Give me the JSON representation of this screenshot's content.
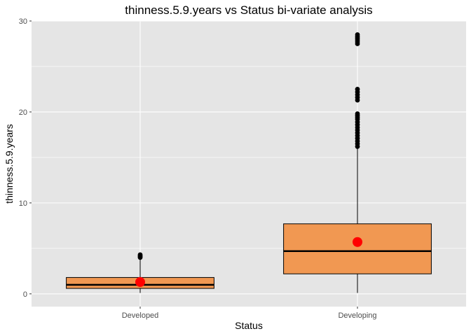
{
  "chart_data": {
    "type": "box",
    "title": "thinness.5.9.years vs Status bi-variate analysis",
    "xlabel": "Status",
    "ylabel": "thinness.5.9.years",
    "ylim": [
      -1.4,
      30.0
    ],
    "yticks": [
      0,
      10,
      20,
      30
    ],
    "yticks_labels": [
      "0",
      "10",
      "20",
      "30"
    ],
    "grid": true,
    "categories": [
      "Developed",
      "Developing"
    ],
    "boxes": [
      {
        "category": "Developed",
        "whisker_low": 0.1,
        "q1": 0.6,
        "median": 1.0,
        "q3": 1.8,
        "whisker_high": 3.9,
        "mean": 1.3,
        "outliers": [
          4.0,
          4.1,
          4.2,
          4.3
        ]
      },
      {
        "category": "Developing",
        "whisker_low": 0.1,
        "q1": 2.2,
        "median": 4.7,
        "q3": 7.7,
        "whisker_high": 16.0,
        "mean": 5.7,
        "outliers": [
          16.2,
          16.5,
          16.8,
          17.1,
          17.4,
          17.7,
          18.0,
          18.3,
          18.6,
          18.9,
          19.2,
          19.4,
          19.6,
          19.8,
          21.3,
          21.6,
          21.9,
          22.2,
          22.5,
          27.5,
          27.7,
          27.9,
          28.1,
          28.3,
          28.5
        ]
      }
    ],
    "colors": {
      "panel_background": "#e5e5e5",
      "grid": "#ffffff",
      "box_fill": "#f19852",
      "box_outline": "#000000",
      "outlier": "#000000",
      "mean_point": "#ff0000"
    }
  }
}
